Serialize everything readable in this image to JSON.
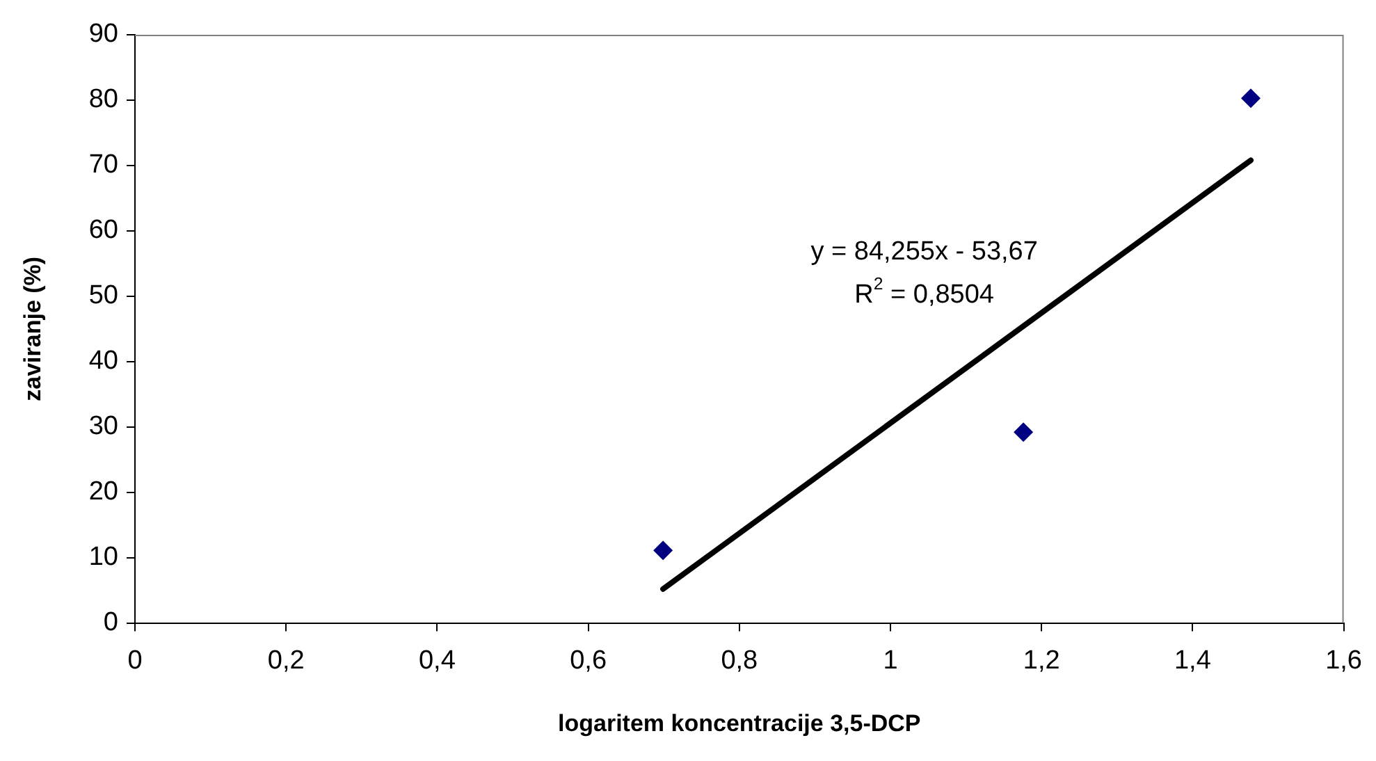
{
  "chart_data": {
    "type": "scatter",
    "xlabel": "logaritem koncentracije 3,5-DCP",
    "ylabel": "zaviranje (%)",
    "series": [
      {
        "type": "scatter",
        "color": "#000080",
        "marker": "diamond",
        "x": [
          0.699,
          1.176,
          1.477
        ],
        "values": [
          11.1,
          29.2,
          80.3
        ]
      },
      {
        "type": "line",
        "color": "#000000",
        "marker": "none",
        "x": [
          0.699,
          1.477
        ],
        "values": [
          5.2,
          70.8
        ]
      }
    ],
    "annotations": [
      "y = 84,255x - 53,67",
      "R$^{2}$ = 0,8504"
    ],
    "xlim": [
      0,
      1.6
    ],
    "xticks": [
      0,
      {
        "value": 0.2,
        "label": "0,2"
      },
      {
        "value": 0.4,
        "label": "0,4"
      },
      {
        "value": 0.6,
        "label": "0,6"
      },
      {
        "value": 0.8,
        "label": "0,8"
      },
      1,
      {
        "value": 1.2,
        "label": "1,2"
      },
      {
        "value": 1.4,
        "label": "1,4"
      },
      {
        "value": 1.6,
        "label": "1,6"
      }
    ],
    "ylim": [
      0,
      90
    ],
    "yticks": [
      0,
      10,
      20,
      30,
      40,
      50,
      60,
      70,
      80,
      90
    ],
    "grid": false,
    "legend": false
  }
}
